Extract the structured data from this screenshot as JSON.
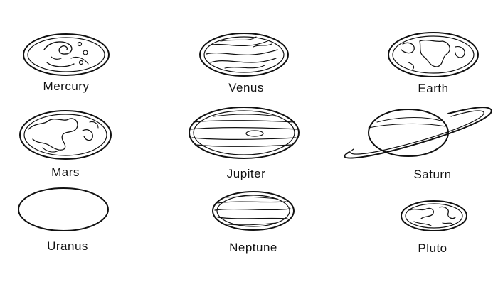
{
  "planets": [
    {
      "id": "mercury",
      "name": "Mercury"
    },
    {
      "id": "venus",
      "name": "Venus"
    },
    {
      "id": "earth",
      "name": "Earth"
    },
    {
      "id": "mars",
      "name": "Mars"
    },
    {
      "id": "jupiter",
      "name": "Jupiter"
    },
    {
      "id": "saturn",
      "name": "Saturn"
    },
    {
      "id": "uranus",
      "name": "Uranus"
    },
    {
      "id": "neptune",
      "name": "Neptune"
    },
    {
      "id": "pluto",
      "name": "Pluto"
    }
  ],
  "colors": {
    "stroke": "#111111",
    "background": "#ffffff"
  }
}
